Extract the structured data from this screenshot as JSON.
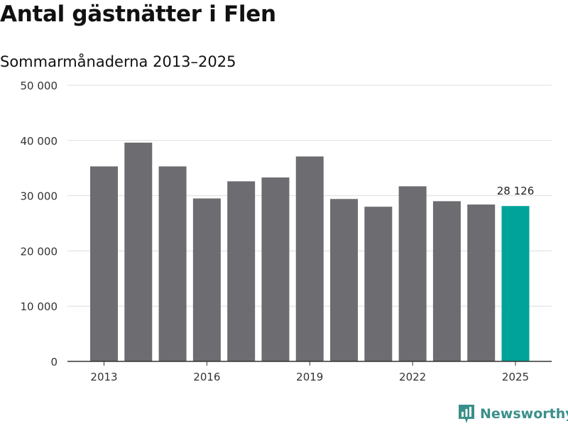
{
  "header": {
    "title": "Antal gästnätter i Flen",
    "subtitle": "Sommarmånaderna 2013–2025"
  },
  "brand": {
    "name": "Newsworthy",
    "icon": "newsworthy-logo-icon",
    "color": "#3a8f8a"
  },
  "chart_data": {
    "type": "bar",
    "title": "Antal gästnätter i Flen",
    "subtitle": "Sommarmånaderna 2013–2025",
    "xlabel": "",
    "ylabel": "",
    "categories": [
      "2013",
      "2014",
      "2015",
      "2016",
      "2017",
      "2018",
      "2019",
      "2020",
      "2021",
      "2022",
      "2023",
      "2024",
      "2025"
    ],
    "x_tick_labels": [
      "2013",
      "2016",
      "2019",
      "2022",
      "2025"
    ],
    "values": [
      35300,
      39600,
      35300,
      29500,
      32600,
      33300,
      37100,
      29400,
      28000,
      31700,
      29000,
      28400,
      28126
    ],
    "ylim": [
      0,
      50000
    ],
    "y_ticks": [
      0,
      10000,
      20000,
      30000,
      40000,
      50000
    ],
    "y_tick_labels": [
      "0",
      "10 000",
      "20 000",
      "30 000",
      "40 000",
      "50 000"
    ],
    "grid": true,
    "legend": "none",
    "highlight": {
      "index": 12,
      "label": "28 126"
    },
    "colors": {
      "bar": "#6d6c71",
      "highlight": "#00a39a",
      "grid": "#dddddd",
      "axis": "#333333"
    }
  }
}
